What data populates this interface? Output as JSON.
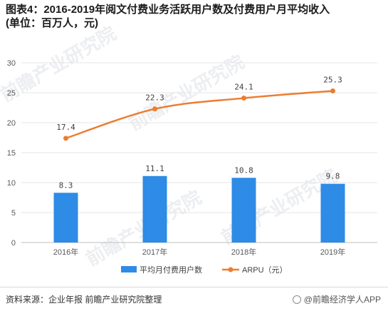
{
  "title": {
    "line1": "图表4：2016-2019年阅文付费业务活跃用户数及付费用户月平均收入",
    "line2": "(单位：百万人，元)"
  },
  "source_text": "资料来源：企业年报 前瞻产业研究院整理",
  "brand_text": "@前瞻经济学人APP",
  "watermark_text": "前瞻产业研究院",
  "colors": {
    "bar": "#2e8be6",
    "line": "#ed7d31",
    "grid": "#e6e6e6",
    "axis": "#bfbfbf"
  },
  "chart_data": {
    "type": "bar",
    "categories": [
      "2016年",
      "2017年",
      "2018年",
      "2019年"
    ],
    "series": [
      {
        "name": "平均月付费用户数",
        "type": "bar",
        "values": [
          8.3,
          11.1,
          10.8,
          9.8
        ],
        "labels": [
          "8.3",
          "11.1",
          "10.8",
          "9.8"
        ]
      },
      {
        "name": "ARPU（元）",
        "type": "line",
        "values": [
          17.4,
          22.3,
          24.1,
          25.3
        ],
        "labels": [
          "17.4",
          "22.3",
          "24.1",
          "25.3"
        ]
      }
    ],
    "ylim": [
      0,
      30
    ],
    "yticks": [
      "0",
      "5",
      "10",
      "15",
      "20",
      "25",
      "30"
    ],
    "grid": true,
    "legend_position": "bottom"
  }
}
